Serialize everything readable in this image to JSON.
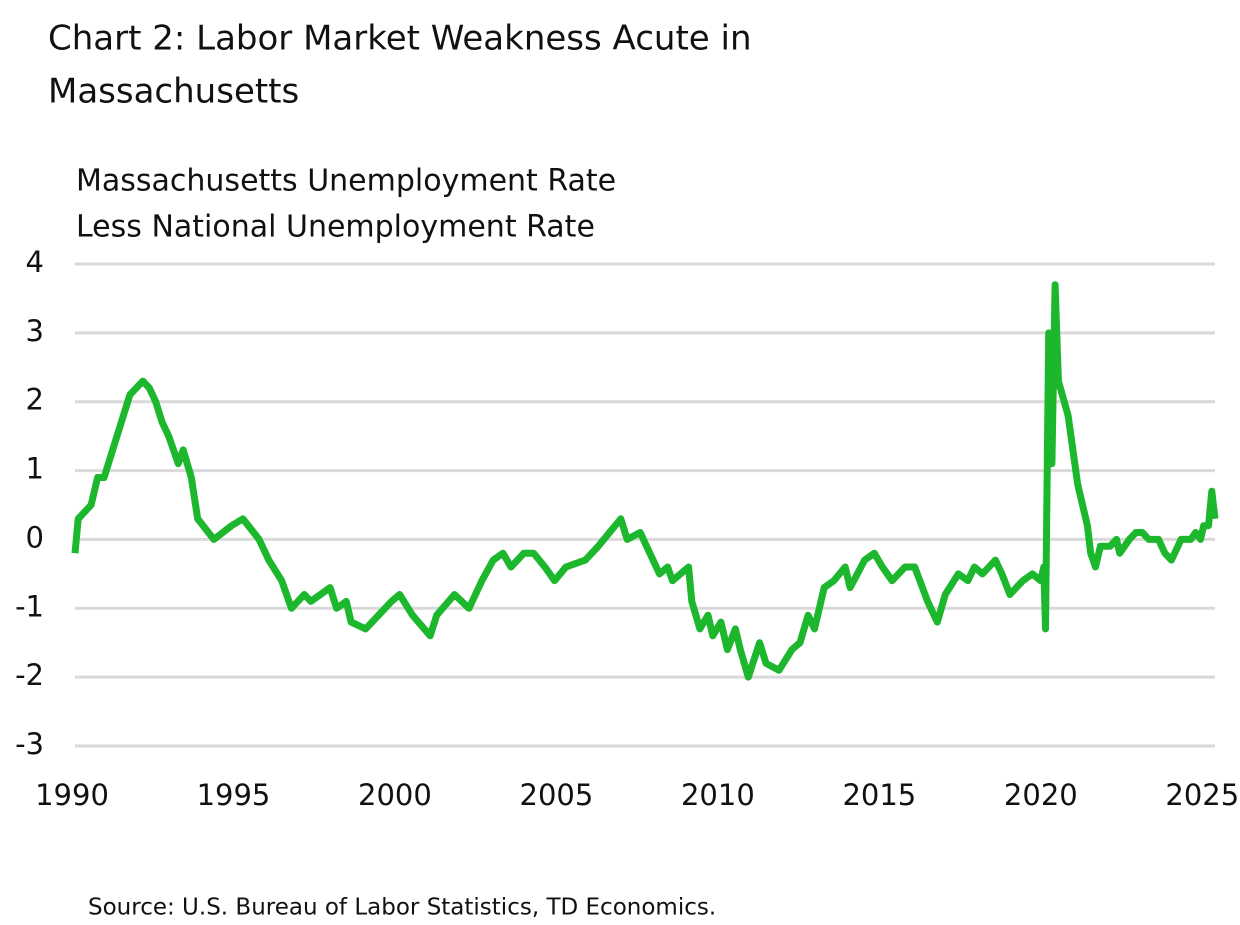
{
  "chart_data": {
    "type": "line",
    "title": [
      "Chart 2: Labor Market Weakness Acute in",
      "Massachusetts"
    ],
    "subtitle": [
      "Massachusetts Unemployment Rate",
      "Less National Unemployment Rate"
    ],
    "source": "Source: U.S. Bureau of Labor Statistics, TD Economics.",
    "color": "#1db72d",
    "grid": true,
    "xlim": [
      1990,
      2025.3
    ],
    "xticks": [
      1990,
      1995,
      2000,
      2005,
      2010,
      2015,
      2020,
      2025
    ],
    "ylim": [
      -3,
      4
    ],
    "yticks": [
      -3,
      -2,
      -1,
      0,
      1,
      2,
      3,
      4
    ],
    "x": [
      1990.0,
      1990.1,
      1990.3,
      1990.5,
      1990.7,
      1990.9,
      1991.1,
      1991.3,
      1991.5,
      1991.7,
      1991.9,
      1992.1,
      1992.3,
      1992.5,
      1992.7,
      1992.9,
      1993.2,
      1993.35,
      1993.6,
      1993.8,
      1994.3,
      1994.85,
      1995.2,
      1995.7,
      1996.0,
      1996.4,
      1996.7,
      1997.1,
      1997.3,
      1997.9,
      1998.1,
      1998.4,
      1998.55,
      1999.0,
      1999.6,
      1999.8,
      2000.05,
      2000.45,
      2001.0,
      2001.2,
      2001.75,
      2002.2,
      2002.6,
      2002.95,
      2003.25,
      2003.5,
      2003.9,
      2004.2,
      2004.55,
      2004.85,
      2005.2,
      2005.8,
      2006.2,
      2006.55,
      2006.9,
      2007.1,
      2007.5,
      2007.8,
      2008.1,
      2008.35,
      2008.5,
      2009.0,
      2009.1,
      2009.35,
      2009.6,
      2009.75,
      2010.0,
      2010.2,
      2010.45,
      2010.6,
      2010.85,
      2011.2,
      2011.4,
      2011.8,
      2012.2,
      2012.45,
      2012.7,
      2012.9,
      2013.2,
      2013.5,
      2013.85,
      2014.0,
      2014.45,
      2014.75,
      2015.0,
      2015.3,
      2015.7,
      2016.0,
      2016.4,
      2016.7,
      2016.95,
      2017.35,
      2017.65,
      2017.85,
      2018.1,
      2018.5,
      2018.7,
      2018.95,
      2019.35,
      2019.65,
      2019.9,
      2020.0,
      2020.05,
      2020.15,
      2020.25,
      2020.35,
      2020.45,
      2020.75,
      2021.05,
      2021.35,
      2021.45,
      2021.6,
      2021.75,
      2022.05,
      2022.25,
      2022.35,
      2022.65,
      2022.85,
      2023.05,
      2023.25,
      2023.55,
      2023.75,
      2023.95,
      2024.15,
      2024.25,
      2024.55,
      2024.7,
      2024.85,
      2024.95,
      2025.1,
      2025.2,
      2025.3
    ],
    "values": [
      -0.2,
      0.3,
      0.4,
      0.5,
      0.9,
      0.9,
      1.2,
      1.5,
      1.8,
      2.1,
      2.2,
      2.3,
      2.2,
      2.0,
      1.7,
      1.5,
      1.1,
      1.3,
      0.9,
      0.3,
      0.0,
      0.2,
      0.3,
      0.0,
      -0.3,
      -0.6,
      -1.0,
      -0.8,
      -0.9,
      -0.7,
      -1.0,
      -0.9,
      -1.2,
      -1.3,
      -1.0,
      -0.9,
      -0.8,
      -1.1,
      -1.4,
      -1.1,
      -0.8,
      -1.0,
      -0.6,
      -0.3,
      -0.2,
      -0.4,
      -0.2,
      -0.2,
      -0.4,
      -0.6,
      -0.4,
      -0.3,
      -0.1,
      0.1,
      0.3,
      0.0,
      0.1,
      -0.2,
      -0.5,
      -0.4,
      -0.6,
      -0.4,
      -0.9,
      -1.3,
      -1.1,
      -1.4,
      -1.2,
      -1.6,
      -1.3,
      -1.6,
      -2.0,
      -1.5,
      -1.8,
      -1.9,
      -1.6,
      -1.5,
      -1.1,
      -1.3,
      -0.7,
      -0.6,
      -0.4,
      -0.7,
      -0.3,
      -0.2,
      -0.4,
      -0.6,
      -0.4,
      -0.4,
      -0.9,
      -1.2,
      -0.8,
      -0.5,
      -0.6,
      -0.4,
      -0.5,
      -0.3,
      -0.5,
      -0.8,
      -0.6,
      -0.5,
      -0.6,
      -0.4,
      -1.3,
      3.0,
      1.1,
      3.7,
      2.3,
      1.8,
      0.8,
      0.2,
      -0.2,
      -0.4,
      -0.1,
      -0.1,
      0.0,
      -0.2,
      0.0,
      0.1,
      0.1,
      0.0,
      0.0,
      -0.2,
      -0.3,
      -0.1,
      0.0,
      0.0,
      0.1,
      0.0,
      0.2,
      0.2,
      0.7,
      0.3
    ]
  }
}
